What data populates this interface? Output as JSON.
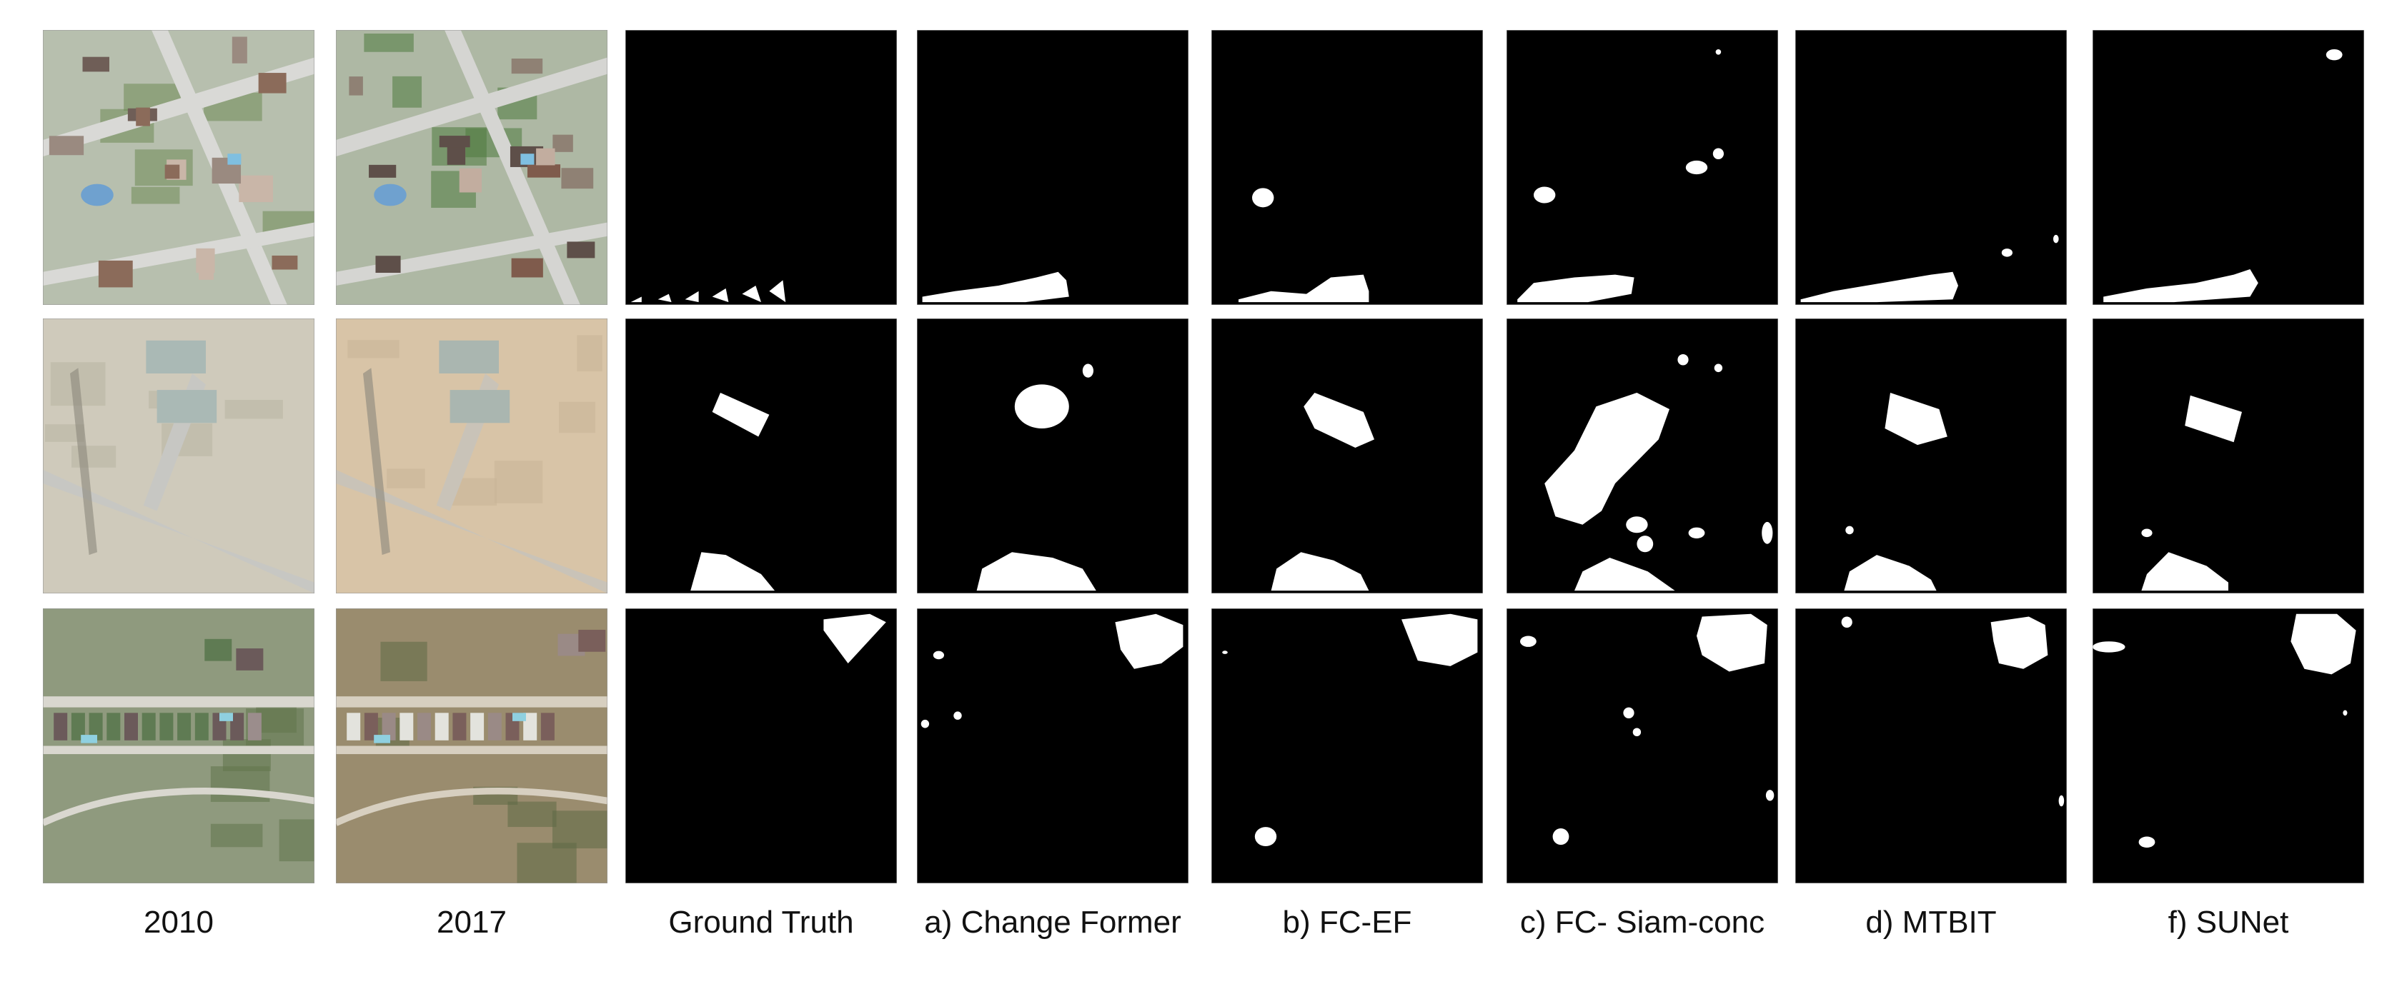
{
  "columns": [
    {
      "caption": "2010",
      "kind": "aerial-photo"
    },
    {
      "caption": "2017",
      "kind": "aerial-photo"
    },
    {
      "caption": "Ground Truth",
      "kind": "change-mask"
    },
    {
      "caption": "a) Change Former",
      "kind": "change-mask"
    },
    {
      "caption": "b) FC-EF",
      "kind": "change-mask"
    },
    {
      "caption": "c) FC- Siam-conc",
      "kind": "change-mask"
    },
    {
      "caption": "d) MTBIT",
      "kind": "change-mask"
    },
    {
      "caption": "f)  SUNet",
      "kind": "change-mask"
    }
  ],
  "rows": 3,
  "colors": {
    "mask_background": "#000000",
    "mask_change": "#ffffff",
    "page_background": "#ffffff"
  }
}
